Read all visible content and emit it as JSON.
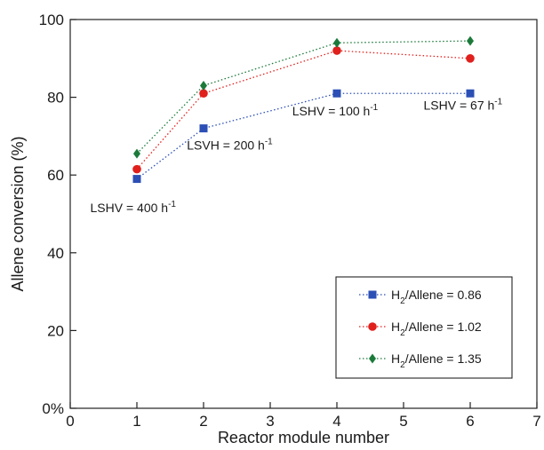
{
  "chart_data": {
    "type": "line",
    "xlabel": "Reactor module number",
    "ylabel": "Allene conversion (%)",
    "xlim": [
      0,
      7
    ],
    "ylim": [
      0,
      100
    ],
    "x_ticks": [
      "0",
      "1",
      "2",
      "3",
      "4",
      "5",
      "6",
      "7"
    ],
    "y_ticks": [
      "0%",
      "20",
      "40",
      "60",
      "80",
      "100"
    ],
    "grid": false,
    "legend_position": "lower-right",
    "series": [
      {
        "name": "H2/Allene = 0.86",
        "legend_main": "H",
        "legend_sub": "2",
        "legend_rest": "/Allene = 0.86",
        "marker": "square",
        "color": "#2b4fb5",
        "x": [
          1,
          2,
          4,
          6
        ],
        "y": [
          59,
          72,
          81,
          81
        ]
      },
      {
        "name": "H2/Allene = 1.02",
        "legend_main": "H",
        "legend_sub": "2",
        "legend_rest": "/Allene = 1.02",
        "marker": "circle",
        "color": "#e0201c",
        "x": [
          1,
          2,
          4,
          6
        ],
        "y": [
          61.5,
          81,
          92,
          90
        ]
      },
      {
        "name": "H2/Allene = 1.35",
        "legend_main": "H",
        "legend_sub": "2",
        "legend_rest": "/Allene = 1.35",
        "marker": "diamond",
        "color": "#1b7a3a",
        "x": [
          1,
          2,
          4,
          6
        ],
        "y": [
          65.5,
          83,
          94,
          94.5
        ]
      }
    ],
    "annotations": [
      {
        "text": "LSHV = 400 h",
        "sup": "-1",
        "x": 0.3,
        "y": 50.5
      },
      {
        "text": "LSVH = 200 h",
        "sup": "-1",
        "x": 1.75,
        "y": 66.5
      },
      {
        "text": "LSHV = 100 h",
        "sup": "-1",
        "x": 3.33,
        "y": 75.3
      },
      {
        "text": "LSHV = 67 h",
        "sup": "-1",
        "x": 5.3,
        "y": 76.8
      }
    ]
  }
}
